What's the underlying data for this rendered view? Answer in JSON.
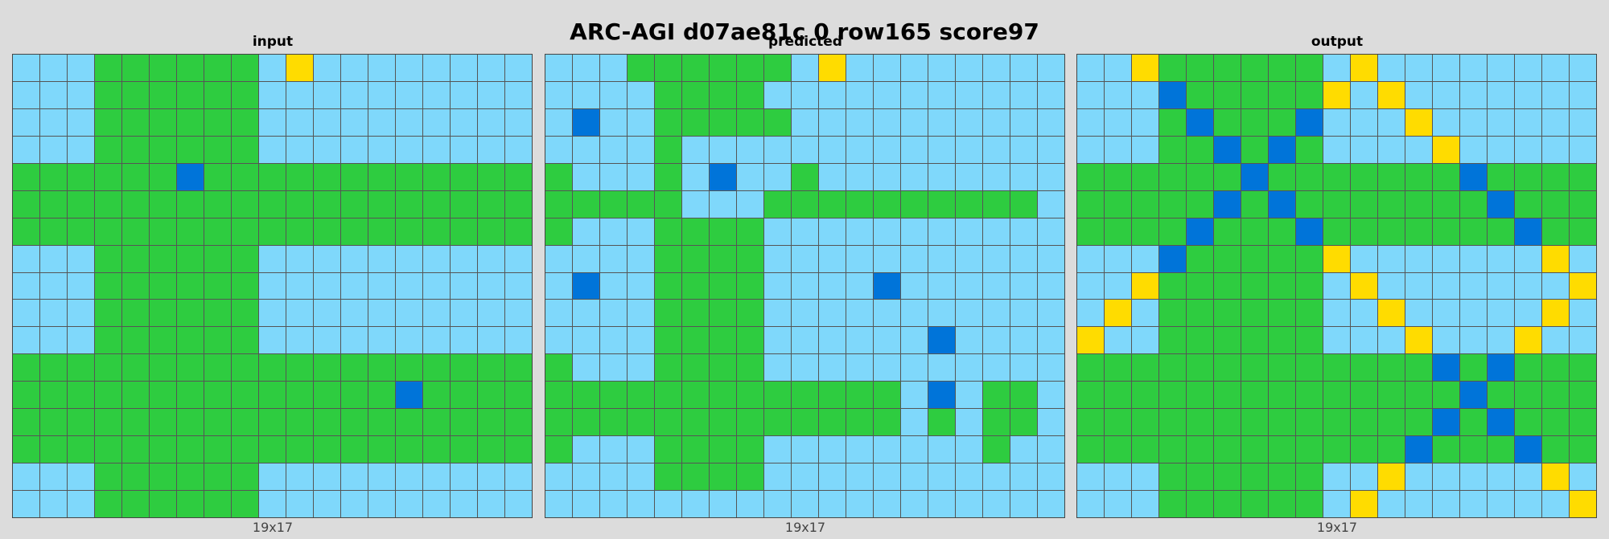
{
  "title": "ARC-AGI d07ae81c 0 row165 score97",
  "colors": {
    "L": "#7fd8fb",
    "G": "#2ecc40",
    "B": "#0074d9",
    "Y": "#ffdc00"
  },
  "panels": [
    {
      "label": "input",
      "size_label": "19x17",
      "rows": [
        "LLLGGGGGGLYLLLLLLLL",
        "LLLGGGGGGLLLLLLLLLL",
        "LLLGGGGGGLLLLLLLLLL",
        "LLLGGGGGGLLLLLLLLLL",
        "GGGGGGBGGGGGGGGGGGG",
        "GGGGGGGGGGGGGGGGGGG",
        "GGGGGGGGGGGGGGGGGGG",
        "LLLGGGGGGLLLLLLLLLL",
        "LLLGGGGGGLLLLLLLLLL",
        "LLLGGGGGGLLLLLLLLLL",
        "LLLGGGGGGLLLLLLLLLL",
        "GGGGGGGGGGGGGGGGGGG",
        "GGGGGGGGGGGGGGBGGGG",
        "GGGGGGGGGGGGGGGGGGG",
        "GGGGGGGGGGGGGGGGGGG",
        "LLLGGGGGGLLLLLLLLLL",
        "LLLGGGGGGLLLLLLLLLL"
      ]
    },
    {
      "label": "predicted",
      "size_label": "19x17",
      "rows": [
        "LLLGGGGGGLYLLLLLLLL",
        "LLLLGGGGLLLLLLLLLLL",
        "LBLLGGGGGLLLLLLLLLL",
        "LLLLGLLLLLLLLLLLLLL",
        "GLLLGLBLLGLLLLLLLLL",
        "GGGGGLLLGGGGGGGGGGL",
        "GLLLGGGGLLLLLLLLLLL",
        "LLLLGGGGLLLLLLLLLLL",
        "LBLLGGGGLLLLBLLLLLL",
        "LLLLGGGGLLLLLLLLLLL",
        "LLLLGGGGLLLLLLBLLLL",
        "GLLLGGGGLLLLLLLLLLL",
        "GGGGGGGGGGGGGLBLGGL",
        "GGGGGGGGGGGGGLGLGGL",
        "GLLLGGGGLLLLLLLLGLL",
        "LLLLGGGGLLLLLLLLLLL",
        "LLLLLLLLLLLLLLLLLLL"
      ]
    },
    {
      "label": "output",
      "size_label": "19x17",
      "rows": [
        "LLYGGGGGGLYLLLLLLLL",
        "LLLBGGGGGYLYLLLLLLL",
        "LLLGBGGGBLLLYLLLLLL",
        "LLLGGBGBGLLLLYLLLLL",
        "GGGGGGBGGGGGGGBGGGG",
        "GGGGGBGBGGGGGGGBGGG",
        "GGGGBGGGBGGGGGGGBGG",
        "LLLBGGGGGYLLLLLLLYL",
        "LLYGGGGGGLYLLLLLLLY",
        "LYLGGGGGGLLYLLLLLYL",
        "YLLGGGGGGLLLYLLLYLL",
        "GGGGGGGGGGGGGBGBGGG",
        "GGGGGGGGGGGGGGBGGGG",
        "GGGGGGGGGGGGGBGBGGG",
        "GGGGGGGGGGGGBGGGBGG",
        "LLLGGGGGGLLYLLLLLYL",
        "LLLGGGGGGLYLLLLLLLY"
      ]
    }
  ]
}
